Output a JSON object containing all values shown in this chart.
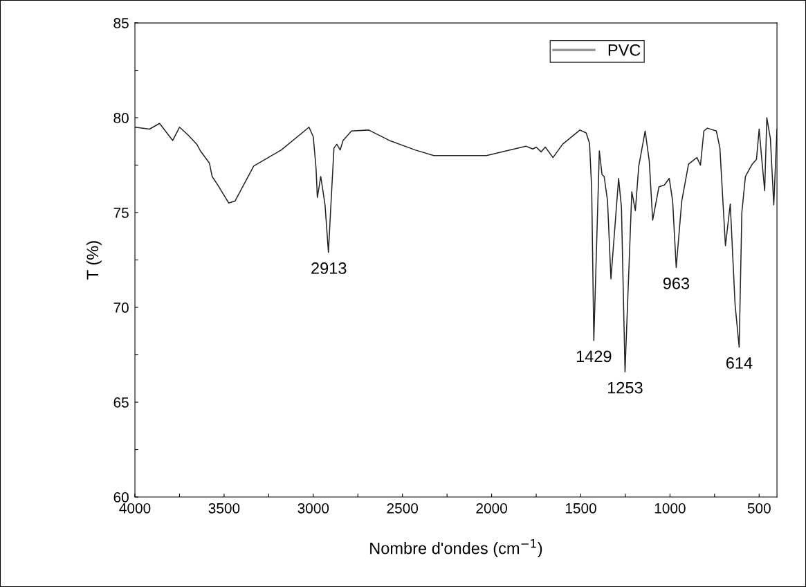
{
  "chart_data": {
    "type": "line",
    "xlabel": "Nombre d'ondes (cm$^{−1}$)",
    "ylabel": "T (%)",
    "xlim": [
      4000,
      400
    ],
    "ylim": [
      60,
      85
    ],
    "xticks": [
      4000,
      {
        "value": 3750,
        "label": null
      },
      3500,
      {
        "value": 3250,
        "label": null
      },
      3000,
      {
        "value": 2750,
        "label": null
      },
      2500,
      {
        "value": 2250,
        "label": null
      },
      2000,
      {
        "value": 1750,
        "label": null
      },
      1500,
      {
        "value": 1250,
        "label": null
      },
      1000,
      {
        "value": 750,
        "label": null
      },
      500
    ],
    "yticks": [
      60,
      {
        "value": 62.5,
        "label": null
      },
      65,
      {
        "value": 67.5,
        "label": null
      },
      70,
      {
        "value": 72.5,
        "label": null
      },
      75,
      {
        "value": 77.5,
        "label": null
      },
      80,
      {
        "value": 82.5,
        "label": null
      },
      85
    ],
    "grid": false,
    "legend": "top",
    "marker": "none",
    "line_style": "solid",
    "series": [
      {
        "name": "PVC",
        "color": "#222222",
        "x": [
          4000,
          3918,
          3862,
          3788,
          3750,
          3703,
          3653,
          3633,
          3582,
          3567,
          3532,
          3474,
          3439,
          3334,
          3179,
          3024,
          3000,
          2985,
          2977,
          2958,
          2934,
          2915,
          2902,
          2884,
          2868,
          2849,
          2833,
          2786,
          2689,
          2573,
          2429,
          2324,
          2029,
          1808,
          1769,
          1750,
          1723,
          1699,
          1656,
          1602,
          1505,
          1470,
          1451,
          1439,
          1427,
          1396,
          1381,
          1369,
          1350,
          1331,
          1288,
          1272,
          1252,
          1214,
          1194,
          1175,
          1139,
          1116,
          1097,
          1062,
          1031,
          1004,
          985,
          965,
          934,
          896,
          849,
          829,
          810,
          790,
          740,
          720,
          689,
          662,
          635,
          612,
          597,
          577,
          539,
          515,
          500,
          488,
          469,
          457,
          437,
          418,
          400
        ],
        "values": [
          79.5,
          79.4,
          79.7,
          78.8,
          79.5,
          79.1,
          78.6,
          78.25,
          77.6,
          76.9,
          76.4,
          75.5,
          75.6,
          77.45,
          78.3,
          79.5,
          79.0,
          77.4,
          75.8,
          76.9,
          75.4,
          72.9,
          75.25,
          78.4,
          78.6,
          78.3,
          78.8,
          79.3,
          79.35,
          78.8,
          78.3,
          78.0,
          78.0,
          78.5,
          78.35,
          78.45,
          78.2,
          78.45,
          77.9,
          78.6,
          79.35,
          79.2,
          78.65,
          76.25,
          68.25,
          78.25,
          77.0,
          76.9,
          75.6,
          71.5,
          76.8,
          75.25,
          66.6,
          76.1,
          75.1,
          77.45,
          79.3,
          77.7,
          74.6,
          76.35,
          76.45,
          76.8,
          75.6,
          72.1,
          75.6,
          77.55,
          77.9,
          77.5,
          79.3,
          79.45,
          79.3,
          78.4,
          73.25,
          75.45,
          70.15,
          67.9,
          75.0,
          76.9,
          77.55,
          77.8,
          79.4,
          78.1,
          76.15,
          80.0,
          78.9,
          75.4,
          79.4
        ]
      }
    ],
    "annotations": [
      {
        "text": "2913",
        "x": 2913,
        "y": 72.9
      },
      {
        "text": "1429",
        "x": 1427,
        "y": 68.25
      },
      {
        "text": "1253",
        "x": 1252,
        "y": 66.6
      },
      {
        "text": "963",
        "x": 965,
        "y": 72.1
      },
      {
        "text": "614",
        "x": 612,
        "y": 67.9
      }
    ]
  }
}
